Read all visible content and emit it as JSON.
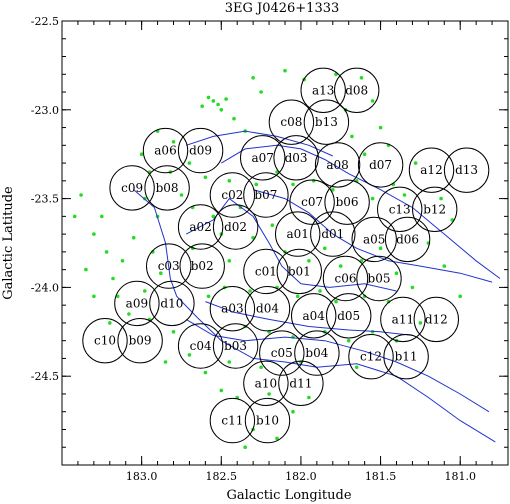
{
  "chart_data": {
    "type": "scatter",
    "title": "3EG J0426+1333",
    "xlabel": "Galactic Longitude",
    "ylabel": "Galactic Latitude",
    "xlim": [
      183.5,
      180.7
    ],
    "ylim": [
      -25.0,
      -22.5
    ],
    "x_ticks": [
      183.0,
      182.5,
      182.0,
      181.5,
      181.0
    ],
    "x_tick_labels": [
      "183.0",
      "182.5",
      "182.0",
      "181.5",
      "181.0"
    ],
    "y_ticks": [
      -22.5,
      -23.0,
      -23.5,
      -24.0,
      -24.5
    ],
    "y_tick_labels": [
      "-22.5",
      "-23.0",
      "-23.5",
      "-24.0",
      "-24.5"
    ],
    "grid": false,
    "circle_radius_deg": 0.125,
    "fields": [
      {
        "label": "a13",
        "l": 181.86,
        "b": -22.89
      },
      {
        "label": "d08",
        "l": 181.65,
        "b": -22.89
      },
      {
        "label": "c08",
        "l": 182.06,
        "b": -23.07
      },
      {
        "label": "b13",
        "l": 181.84,
        "b": -23.07
      },
      {
        "label": "a06",
        "l": 182.85,
        "b": -23.23
      },
      {
        "label": "d09",
        "l": 182.63,
        "b": -23.23
      },
      {
        "label": "a07",
        "l": 182.24,
        "b": -23.27
      },
      {
        "label": "d03",
        "l": 182.03,
        "b": -23.27
      },
      {
        "label": "a08",
        "l": 181.77,
        "b": -23.31
      },
      {
        "label": "d07",
        "l": 181.5,
        "b": -23.31
      },
      {
        "label": "a12",
        "l": 181.18,
        "b": -23.34
      },
      {
        "label": "d13",
        "l": 180.96,
        "b": -23.34
      },
      {
        "label": "c09",
        "l": 183.06,
        "b": -23.44
      },
      {
        "label": "b08",
        "l": 182.84,
        "b": -23.44
      },
      {
        "label": "c02",
        "l": 182.43,
        "b": -23.48
      },
      {
        "label": "b07",
        "l": 182.22,
        "b": -23.48
      },
      {
        "label": "c07",
        "l": 181.93,
        "b": -23.52
      },
      {
        "label": "b06",
        "l": 181.71,
        "b": -23.52
      },
      {
        "label": "c13",
        "l": 181.38,
        "b": -23.56
      },
      {
        "label": "b12",
        "l": 181.16,
        "b": -23.56
      },
      {
        "label": "a02",
        "l": 182.63,
        "b": -23.66
      },
      {
        "label": "d02",
        "l": 182.41,
        "b": -23.66
      },
      {
        "label": "a01",
        "l": 182.02,
        "b": -23.7
      },
      {
        "label": "d01",
        "l": 181.8,
        "b": -23.7
      },
      {
        "label": "a05",
        "l": 181.54,
        "b": -23.73
      },
      {
        "label": "d06",
        "l": 181.33,
        "b": -23.73
      },
      {
        "label": "c03",
        "l": 182.83,
        "b": -23.88
      },
      {
        "label": "b02",
        "l": 182.62,
        "b": -23.88
      },
      {
        "label": "c01",
        "l": 182.22,
        "b": -23.91
      },
      {
        "label": "b01",
        "l": 182.01,
        "b": -23.91
      },
      {
        "label": "c06",
        "l": 181.72,
        "b": -23.95
      },
      {
        "label": "b05",
        "l": 181.51,
        "b": -23.95
      },
      {
        "label": "a09",
        "l": 183.03,
        "b": -24.09
      },
      {
        "label": "d10",
        "l": 182.81,
        "b": -24.09
      },
      {
        "label": "a03",
        "l": 182.43,
        "b": -24.12
      },
      {
        "label": "d04",
        "l": 182.21,
        "b": -24.12
      },
      {
        "label": "a04",
        "l": 181.92,
        "b": -24.16
      },
      {
        "label": "d05",
        "l": 181.7,
        "b": -24.16
      },
      {
        "label": "a11",
        "l": 181.36,
        "b": -24.18
      },
      {
        "label": "d12",
        "l": 181.15,
        "b": -24.18
      },
      {
        "label": "c10",
        "l": 183.23,
        "b": -24.3
      },
      {
        "label": "b09",
        "l": 183.01,
        "b": -24.3
      },
      {
        "label": "c04",
        "l": 182.63,
        "b": -24.33
      },
      {
        "label": "b03",
        "l": 182.41,
        "b": -24.33
      },
      {
        "label": "c05",
        "l": 182.12,
        "b": -24.37
      },
      {
        "label": "b04",
        "l": 181.9,
        "b": -24.37
      },
      {
        "label": "c12",
        "l": 181.56,
        "b": -24.39
      },
      {
        "label": "b11",
        "l": 181.34,
        "b": -24.39
      },
      {
        "label": "a10",
        "l": 182.22,
        "b": -24.54
      },
      {
        "label": "d11",
        "l": 182.0,
        "b": -24.54
      },
      {
        "label": "c11",
        "l": 182.43,
        "b": -24.75
      },
      {
        "label": "b10",
        "l": 182.21,
        "b": -24.75
      }
    ],
    "contours": [
      {
        "color": "#2233cc",
        "points": [
          [
            182.5,
            -23.3
          ],
          [
            182.35,
            -23.22
          ],
          [
            182.15,
            -23.2
          ],
          [
            182.0,
            -23.22
          ],
          [
            181.85,
            -23.28
          ],
          [
            181.7,
            -23.36
          ],
          [
            181.5,
            -23.45
          ],
          [
            181.3,
            -23.55
          ],
          [
            181.1,
            -23.7
          ],
          [
            180.9,
            -23.85
          ],
          [
            180.75,
            -23.95
          ]
        ]
      },
      {
        "color": "#2233cc",
        "points": [
          [
            182.3,
            -23.45
          ],
          [
            182.1,
            -23.5
          ],
          [
            181.95,
            -23.58
          ],
          [
            181.8,
            -23.7
          ],
          [
            181.65,
            -23.78
          ],
          [
            181.45,
            -23.85
          ],
          [
            181.25,
            -23.88
          ],
          [
            181.0,
            -23.92
          ],
          [
            180.8,
            -23.97
          ]
        ]
      },
      {
        "color": "#2233cc",
        "points": [
          [
            182.72,
            -23.7
          ],
          [
            182.55,
            -23.62
          ],
          [
            182.45,
            -23.5
          ],
          [
            182.3,
            -23.6
          ],
          [
            182.2,
            -23.75
          ],
          [
            182.12,
            -23.88
          ],
          [
            182.0,
            -23.98
          ],
          [
            181.82,
            -24.0
          ],
          [
            181.6,
            -23.98
          ],
          [
            181.4,
            -24.02
          ]
        ]
      },
      {
        "color": "#2233cc",
        "points": [
          [
            182.6,
            -24.08
          ],
          [
            182.42,
            -24.14
          ],
          [
            182.2,
            -24.18
          ],
          [
            181.95,
            -24.22
          ],
          [
            181.7,
            -24.24
          ],
          [
            181.5,
            -24.25
          ],
          [
            181.3,
            -24.27
          ]
        ]
      },
      {
        "color": "#2233cc",
        "points": [
          [
            182.72,
            -24.18
          ],
          [
            182.55,
            -24.27
          ],
          [
            182.35,
            -24.3
          ],
          [
            182.1,
            -24.28
          ],
          [
            181.85,
            -24.3
          ],
          [
            181.6,
            -24.36
          ],
          [
            181.4,
            -24.42
          ],
          [
            181.2,
            -24.5
          ],
          [
            181.0,
            -24.6
          ],
          [
            180.82,
            -24.7
          ]
        ]
      },
      {
        "color": "#2233cc",
        "points": [
          [
            183.05,
            -23.45
          ],
          [
            182.92,
            -23.55
          ],
          [
            182.85,
            -23.75
          ],
          [
            182.82,
            -23.95
          ],
          [
            182.78,
            -24.05
          ],
          [
            182.65,
            -24.17
          ],
          [
            182.5,
            -24.3
          ],
          [
            182.3,
            -24.4
          ],
          [
            182.1,
            -24.42
          ],
          [
            181.9,
            -24.45
          ],
          [
            181.65,
            -24.43
          ],
          [
            181.4,
            -24.5
          ],
          [
            181.2,
            -24.62
          ],
          [
            181.0,
            -24.75
          ],
          [
            180.78,
            -24.87
          ]
        ]
      },
      {
        "color": "#2233cc",
        "points": [
          [
            182.72,
            -23.2
          ],
          [
            182.55,
            -23.15
          ],
          [
            182.35,
            -23.12
          ],
          [
            182.15,
            -23.15
          ],
          [
            181.95,
            -23.2
          ],
          [
            181.8,
            -23.26
          ]
        ]
      }
    ],
    "sources": [
      {
        "l": 182.98,
        "b": -23.5
      },
      {
        "l": 182.9,
        "b": -23.6
      },
      {
        "l": 183.05,
        "b": -23.72
      },
      {
        "l": 182.93,
        "b": -23.8
      },
      {
        "l": 183.12,
        "b": -23.85
      },
      {
        "l": 182.88,
        "b": -23.92
      },
      {
        "l": 182.98,
        "b": -24.02
      },
      {
        "l": 183.18,
        "b": -23.95
      },
      {
        "l": 183.25,
        "b": -23.6
      },
      {
        "l": 183.3,
        "b": -23.7
      },
      {
        "l": 183.22,
        "b": -23.8
      },
      {
        "l": 183.35,
        "b": -23.9
      },
      {
        "l": 183.15,
        "b": -24.05
      },
      {
        "l": 183.08,
        "b": -24.15
      },
      {
        "l": 183.2,
        "b": -24.2
      },
      {
        "l": 182.95,
        "b": -24.18
      },
      {
        "l": 182.8,
        "b": -24.25
      },
      {
        "l": 182.7,
        "b": -24.38
      },
      {
        "l": 182.85,
        "b": -24.42
      },
      {
        "l": 182.6,
        "b": -24.48
      },
      {
        "l": 182.5,
        "b": -24.58
      },
      {
        "l": 182.4,
        "b": -24.62
      },
      {
        "l": 182.3,
        "b": -24.8
      },
      {
        "l": 182.35,
        "b": -24.9
      },
      {
        "l": 182.15,
        "b": -24.85
      },
      {
        "l": 182.05,
        "b": -24.7
      },
      {
        "l": 182.2,
        "b": -24.6
      },
      {
        "l": 181.95,
        "b": -24.62
      },
      {
        "l": 182.3,
        "b": -22.82
      },
      {
        "l": 182.25,
        "b": -22.9
      },
      {
        "l": 182.1,
        "b": -22.78
      },
      {
        "l": 181.98,
        "b": -22.83
      },
      {
        "l": 181.78,
        "b": -22.8
      },
      {
        "l": 181.62,
        "b": -22.82
      },
      {
        "l": 181.55,
        "b": -22.95
      },
      {
        "l": 181.72,
        "b": -23.0
      },
      {
        "l": 182.55,
        "b": -22.95
      },
      {
        "l": 182.52,
        "b": -22.97
      },
      {
        "l": 182.58,
        "b": -22.93
      },
      {
        "l": 182.5,
        "b": -23.0
      },
      {
        "l": 182.62,
        "b": -22.98
      },
      {
        "l": 182.47,
        "b": -22.94
      },
      {
        "l": 182.42,
        "b": -23.05
      },
      {
        "l": 182.35,
        "b": -23.12
      },
      {
        "l": 182.9,
        "b": -23.12
      },
      {
        "l": 182.8,
        "b": -23.18
      },
      {
        "l": 182.7,
        "b": -23.3
      },
      {
        "l": 182.6,
        "b": -23.38
      },
      {
        "l": 182.45,
        "b": -23.4
      },
      {
        "l": 182.38,
        "b": -23.55
      },
      {
        "l": 182.28,
        "b": -23.42
      },
      {
        "l": 182.15,
        "b": -23.35
      },
      {
        "l": 182.05,
        "b": -23.42
      },
      {
        "l": 181.92,
        "b": -23.4
      },
      {
        "l": 181.8,
        "b": -23.45
      },
      {
        "l": 181.65,
        "b": -23.4
      },
      {
        "l": 181.55,
        "b": -23.5
      },
      {
        "l": 181.42,
        "b": -23.42
      },
      {
        "l": 181.35,
        "b": -23.48
      },
      {
        "l": 181.28,
        "b": -23.3
      },
      {
        "l": 181.45,
        "b": -23.2
      },
      {
        "l": 181.6,
        "b": -23.25
      },
      {
        "l": 181.68,
        "b": -23.15
      },
      {
        "l": 181.5,
        "b": -23.1
      },
      {
        "l": 182.55,
        "b": -23.6
      },
      {
        "l": 182.5,
        "b": -23.7
      },
      {
        "l": 182.68,
        "b": -23.78
      },
      {
        "l": 182.45,
        "b": -23.85
      },
      {
        "l": 182.3,
        "b": -23.72
      },
      {
        "l": 182.18,
        "b": -23.65
      },
      {
        "l": 182.1,
        "b": -23.8
      },
      {
        "l": 181.95,
        "b": -23.85
      },
      {
        "l": 181.85,
        "b": -23.78
      },
      {
        "l": 181.75,
        "b": -23.88
      },
      {
        "l": 181.62,
        "b": -23.85
      },
      {
        "l": 181.5,
        "b": -23.78
      },
      {
        "l": 181.4,
        "b": -23.92
      },
      {
        "l": 181.3,
        "b": -24.0
      },
      {
        "l": 181.45,
        "b": -24.08
      },
      {
        "l": 181.6,
        "b": -24.05
      },
      {
        "l": 181.78,
        "b": -24.08
      },
      {
        "l": 181.88,
        "b": -24.02
      },
      {
        "l": 182.02,
        "b": -24.05
      },
      {
        "l": 182.15,
        "b": -24.0
      },
      {
        "l": 182.32,
        "b": -24.02
      },
      {
        "l": 182.48,
        "b": -24.0
      },
      {
        "l": 182.58,
        "b": -24.05
      },
      {
        "l": 182.35,
        "b": -24.22
      },
      {
        "l": 182.2,
        "b": -24.25
      },
      {
        "l": 182.05,
        "b": -24.28
      },
      {
        "l": 181.85,
        "b": -24.25
      },
      {
        "l": 181.7,
        "b": -24.3
      },
      {
        "l": 181.55,
        "b": -24.25
      },
      {
        "l": 181.4,
        "b": -24.3
      },
      {
        "l": 181.25,
        "b": -24.2
      },
      {
        "l": 181.65,
        "b": -24.45
      },
      {
        "l": 182.0,
        "b": -24.42
      },
      {
        "l": 182.25,
        "b": -24.45
      },
      {
        "l": 182.45,
        "b": -24.42
      },
      {
        "l": 181.12,
        "b": -23.5
      },
      {
        "l": 181.05,
        "b": -23.62
      },
      {
        "l": 181.2,
        "b": -23.75
      },
      {
        "l": 181.1,
        "b": -23.88
      },
      {
        "l": 181.0,
        "b": -24.05
      },
      {
        "l": 183.42,
        "b": -23.6
      },
      {
        "l": 183.38,
        "b": -23.48
      },
      {
        "l": 183.3,
        "b": -24.05
      },
      {
        "l": 182.75,
        "b": -23.48
      },
      {
        "l": 182.68,
        "b": -23.55
      },
      {
        "l": 182.82,
        "b": -23.35
      },
      {
        "l": 183.0,
        "b": -23.25
      },
      {
        "l": 182.95,
        "b": -23.35
      }
    ]
  }
}
